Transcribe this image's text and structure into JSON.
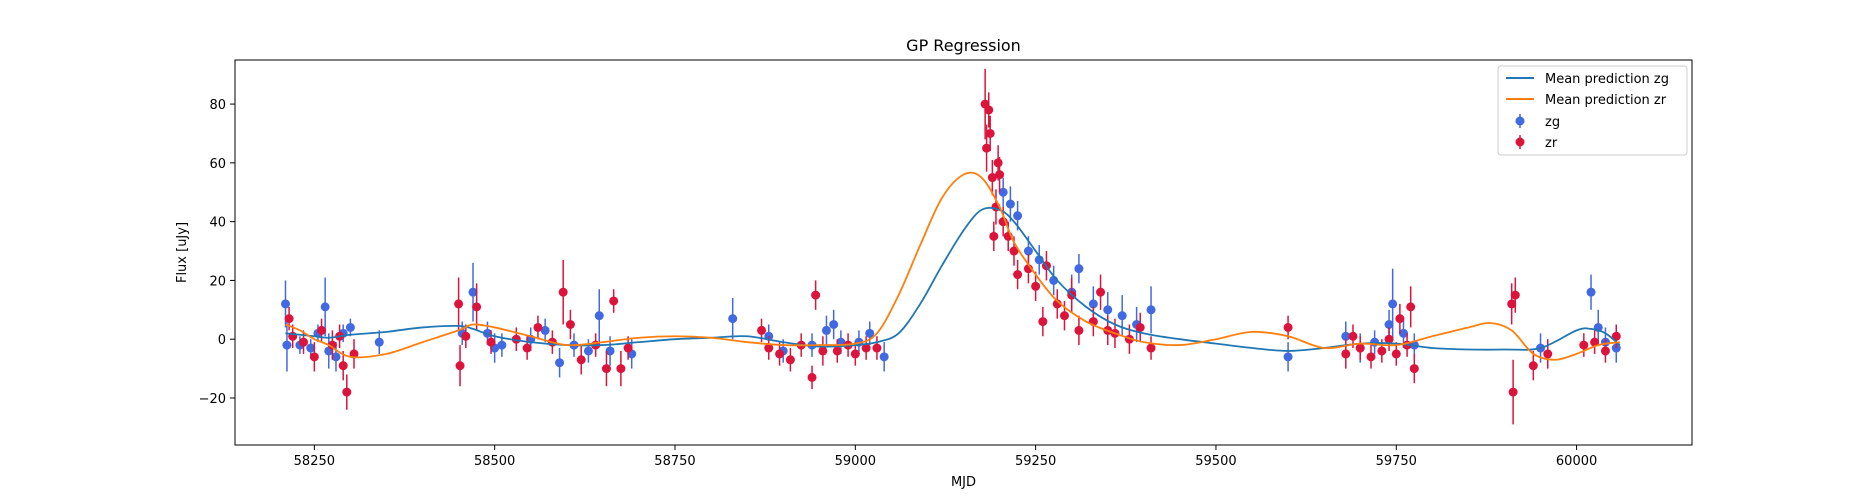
{
  "chart_data": {
    "type": "scatter",
    "title": "GP Regression",
    "xlabel": "MJD",
    "ylabel": "Flux [uJy]",
    "xlim": [
      58140,
      60160
    ],
    "ylim": [
      -36,
      95
    ],
    "xticks": [
      58250,
      58500,
      58750,
      59000,
      59250,
      59500,
      59750,
      60000
    ],
    "yticks": [
      -20,
      0,
      20,
      40,
      60,
      80
    ],
    "ytick_labels": [
      "−20",
      "0",
      "20",
      "40",
      "60",
      "80"
    ],
    "grid": false,
    "legend_position": "top-right",
    "colors": {
      "mean_zg": "#1f77b4",
      "mean_zr": "#ff7f0e",
      "zg": "#4169e1",
      "zr": "#dc143c"
    },
    "lines": [
      {
        "name": "Mean prediction zg",
        "color": "#1f77b4",
        "x": [
          58210,
          58230,
          58250,
          58270,
          58300,
          58350,
          58400,
          58450,
          58470,
          58500,
          58550,
          58600,
          58650,
          58700,
          58750,
          58800,
          58850,
          58900,
          58950,
          59000,
          59030,
          59060,
          59090,
          59120,
          59150,
          59175,
          59200,
          59220,
          59250,
          59280,
          59320,
          59360,
          59400,
          59450,
          59500,
          59550,
          59600,
          59650,
          59700,
          59750,
          59800,
          59850,
          59900,
          59950,
          60000,
          60020,
          60040,
          60060
        ],
        "y": [
          2,
          1.5,
          1,
          0.5,
          1.5,
          2.5,
          4,
          4.5,
          3.5,
          1,
          -1,
          -2,
          -2,
          -1,
          0,
          0.5,
          1,
          -1,
          -2.5,
          -2,
          -1,
          2,
          12,
          25,
          37,
          44,
          44,
          40,
          30,
          20,
          11,
          5,
          2,
          0,
          -1.5,
          -3,
          -4,
          -3,
          -1.5,
          -1.5,
          -3,
          -3.5,
          -3.5,
          -3,
          3,
          3.5,
          2,
          -2
        ]
      },
      {
        "name": "Mean prediction zr",
        "color": "#ff7f0e",
        "x": [
          58210,
          58230,
          58250,
          58270,
          58300,
          58350,
          58400,
          58450,
          58470,
          58500,
          58550,
          58600,
          58650,
          58700,
          58750,
          58800,
          58850,
          58900,
          58950,
          59000,
          59030,
          59060,
          59090,
          59120,
          59150,
          59175,
          59200,
          59220,
          59250,
          59280,
          59320,
          59360,
          59400,
          59450,
          59500,
          59550,
          59600,
          59650,
          59700,
          59750,
          59800,
          59850,
          59880,
          59910,
          59940,
          59970,
          60000,
          60030,
          60060
        ],
        "y": [
          5,
          3,
          0,
          -2,
          -6,
          -5,
          -1,
          3,
          5,
          4,
          1,
          -2,
          -1,
          0.5,
          1,
          0.5,
          -1,
          -2,
          -2,
          -1.5,
          2,
          15,
          32,
          48,
          56,
          55,
          45,
          33,
          22,
          13,
          6,
          2,
          -1,
          -2,
          0,
          2.5,
          1,
          -3,
          -1.5,
          -2,
          1,
          4,
          5.5,
          3,
          -5,
          -7,
          -5,
          -2,
          -1
        ]
      }
    ],
    "series": [
      {
        "name": "zg",
        "color": "#4169e1",
        "points": [
          [
            58210,
            12,
            8
          ],
          [
            58212,
            -2,
            9
          ],
          [
            58230,
            -2,
            3
          ],
          [
            58245,
            -3,
            3
          ],
          [
            58255,
            2,
            3
          ],
          [
            58265,
            11,
            10
          ],
          [
            58270,
            -4,
            6
          ],
          [
            58280,
            -6,
            5
          ],
          [
            58290,
            2,
            3
          ],
          [
            58300,
            4,
            3
          ],
          [
            58340,
            -1,
            4
          ],
          [
            58455,
            2,
            4
          ],
          [
            58470,
            16,
            10
          ],
          [
            58490,
            2,
            4
          ],
          [
            58500,
            -3,
            5
          ],
          [
            58510,
            -2,
            4
          ],
          [
            58550,
            0,
            4
          ],
          [
            58570,
            3,
            4
          ],
          [
            58590,
            -8,
            5
          ],
          [
            58610,
            -2,
            4
          ],
          [
            58630,
            -4,
            4
          ],
          [
            58645,
            8,
            9
          ],
          [
            58660,
            -4,
            5
          ],
          [
            58690,
            -5,
            5
          ],
          [
            58830,
            7,
            7
          ],
          [
            58880,
            1,
            4
          ],
          [
            58900,
            -4,
            4
          ],
          [
            58940,
            -2,
            4
          ],
          [
            58960,
            3,
            5
          ],
          [
            58970,
            5,
            5
          ],
          [
            58980,
            -1,
            4
          ],
          [
            59005,
            -1,
            4
          ],
          [
            59020,
            2,
            4
          ],
          [
            59040,
            -6,
            5
          ],
          [
            59205,
            50,
            5
          ],
          [
            59215,
            46,
            6
          ],
          [
            59225,
            42,
            5
          ],
          [
            59240,
            30,
            5
          ],
          [
            59255,
            27,
            5
          ],
          [
            59275,
            20,
            5
          ],
          [
            59300,
            16,
            6
          ],
          [
            59310,
            24,
            5
          ],
          [
            59330,
            12,
            6
          ],
          [
            59350,
            10,
            6
          ],
          [
            59370,
            8,
            7
          ],
          [
            59390,
            5,
            6
          ],
          [
            59410,
            10,
            8
          ],
          [
            59600,
            -6,
            5
          ],
          [
            59680,
            1,
            5
          ],
          [
            59700,
            -3,
            5
          ],
          [
            59720,
            -1,
            4
          ],
          [
            59740,
            5,
            5
          ],
          [
            59745,
            12,
            12
          ],
          [
            59760,
            2,
            5
          ],
          [
            59775,
            -2,
            4
          ],
          [
            59950,
            -3,
            5
          ],
          [
            60020,
            16,
            6
          ],
          [
            60030,
            4,
            6
          ],
          [
            60040,
            -1,
            5
          ],
          [
            60055,
            -3,
            5
          ]
        ]
      },
      {
        "name": "zr",
        "color": "#dc143c",
        "points": [
          [
            58215,
            7,
            4
          ],
          [
            58220,
            1,
            4
          ],
          [
            58235,
            -1,
            4
          ],
          [
            58250,
            -6,
            5
          ],
          [
            58260,
            3,
            4
          ],
          [
            58275,
            -2,
            5
          ],
          [
            58285,
            1,
            4
          ],
          [
            58290,
            -9,
            5
          ],
          [
            58295,
            -18,
            6
          ],
          [
            58305,
            -5,
            5
          ],
          [
            58450,
            12,
            9
          ],
          [
            58452,
            -9,
            7
          ],
          [
            58460,
            1,
            4
          ],
          [
            58475,
            11,
            8
          ],
          [
            58495,
            -1,
            4
          ],
          [
            58530,
            0,
            4
          ],
          [
            58545,
            -3,
            4
          ],
          [
            58560,
            4,
            4
          ],
          [
            58580,
            -1,
            4
          ],
          [
            58595,
            16,
            11
          ],
          [
            58605,
            5,
            5
          ],
          [
            58620,
            -7,
            5
          ],
          [
            58640,
            -2,
            4
          ],
          [
            58655,
            -10,
            6
          ],
          [
            58665,
            13,
            4
          ],
          [
            58675,
            -10,
            6
          ],
          [
            58685,
            -3,
            4
          ],
          [
            58870,
            3,
            4
          ],
          [
            58880,
            -3,
            4
          ],
          [
            58895,
            -5,
            4
          ],
          [
            58910,
            -7,
            4
          ],
          [
            58925,
            -2,
            4
          ],
          [
            58940,
            -13,
            4
          ],
          [
            58945,
            15,
            5
          ],
          [
            58955,
            -4,
            5
          ],
          [
            58975,
            -4,
            4
          ],
          [
            58990,
            -2,
            4
          ],
          [
            59000,
            -5,
            4
          ],
          [
            59015,
            -3,
            4
          ],
          [
            59030,
            -3,
            4
          ],
          [
            59180,
            80,
            12
          ],
          [
            59182,
            65,
            8
          ],
          [
            59185,
            78,
            6
          ],
          [
            59187,
            70,
            6
          ],
          [
            59190,
            55,
            6
          ],
          [
            59192,
            35,
            5
          ],
          [
            59195,
            45,
            6
          ],
          [
            59198,
            60,
            6
          ],
          [
            59200,
            56,
            6
          ],
          [
            59205,
            40,
            5
          ],
          [
            59212,
            35,
            5
          ],
          [
            59220,
            30,
            5
          ],
          [
            59225,
            22,
            5
          ],
          [
            59240,
            24,
            5
          ],
          [
            59250,
            18,
            5
          ],
          [
            59260,
            6,
            5
          ],
          [
            59265,
            25,
            5
          ],
          [
            59280,
            12,
            5
          ],
          [
            59290,
            8,
            5
          ],
          [
            59300,
            15,
            6
          ],
          [
            59310,
            3,
            5
          ],
          [
            59330,
            6,
            5
          ],
          [
            59340,
            16,
            6
          ],
          [
            59350,
            3,
            5
          ],
          [
            59360,
            2,
            5
          ],
          [
            59380,
            0,
            5
          ],
          [
            59395,
            4,
            5
          ],
          [
            59410,
            -3,
            4
          ],
          [
            59600,
            4,
            4
          ],
          [
            59680,
            -5,
            5
          ],
          [
            59690,
            1,
            4
          ],
          [
            59700,
            -3,
            4
          ],
          [
            59715,
            -6,
            4
          ],
          [
            59730,
            -4,
            4
          ],
          [
            59740,
            0,
            4
          ],
          [
            59750,
            -5,
            4
          ],
          [
            59755,
            7,
            5
          ],
          [
            59765,
            -2,
            4
          ],
          [
            59770,
            11,
            7
          ],
          [
            59775,
            -10,
            5
          ],
          [
            59910,
            12,
            7
          ],
          [
            59912,
            -18,
            11
          ],
          [
            59915,
            15,
            6
          ],
          [
            59940,
            -9,
            5
          ],
          [
            59960,
            -5,
            5
          ],
          [
            60010,
            -2,
            4
          ],
          [
            60025,
            -1,
            4
          ],
          [
            60040,
            -4,
            4
          ],
          [
            60055,
            1,
            4
          ]
        ]
      }
    ]
  }
}
